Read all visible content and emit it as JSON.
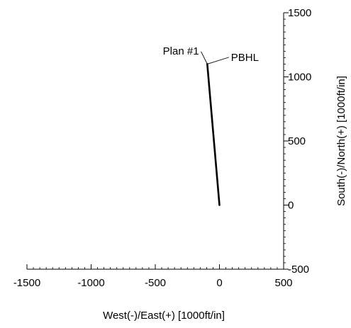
{
  "chart_data": {
    "type": "line",
    "xlabel": "West(-)/East(+) [1000ft/in]",
    "ylabel": "South(-)/North(+) [1000ft/in]",
    "xlim": [
      -1500,
      500
    ],
    "ylim": [
      -500,
      1500
    ],
    "x_ticks": [
      -1500,
      -1000,
      -500,
      0,
      500
    ],
    "y_ticks": [
      -500,
      0,
      500,
      1000,
      1500
    ],
    "x_tick_labels": [
      "-1500",
      "-1000",
      "-500",
      "0",
      "500"
    ],
    "y_tick_labels": [
      "-500",
      "0",
      "500",
      "1000",
      "1500"
    ],
    "grid": false,
    "series": [
      {
        "x": [
          0,
          -95
        ],
        "y": [
          0,
          1100
        ]
      }
    ],
    "annotations": [
      {
        "text": "Plan #1",
        "x": -160,
        "y": 1175
      },
      {
        "text": "PBHL",
        "x": 90,
        "y": 1125
      }
    ]
  }
}
